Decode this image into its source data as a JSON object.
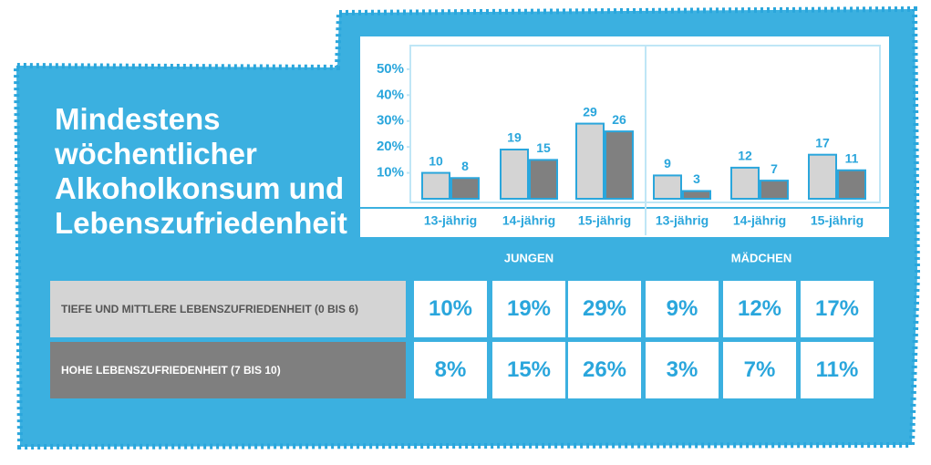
{
  "chart_data": {
    "type": "bar",
    "title": "Mindestens wöchentlicher Alkoholkonsum und Lebenszufriedenheit",
    "categories": [
      "13-jährig",
      "14-jährig",
      "15-jährig",
      "13-jährig",
      "14-jährig",
      "15-jährig"
    ],
    "group_labels": [
      "JUNGEN",
      "MÄDCHEN"
    ],
    "series": [
      {
        "name": "TIEFE UND MITTLERE LEBENSZUFRIEDENHEIT (0 BIS 6)",
        "color": "#d4d4d4",
        "values": [
          10,
          19,
          29,
          9,
          12,
          17
        ],
        "value_labels": [
          "10%",
          "19%",
          "29%",
          "9%",
          "12%",
          "17%"
        ]
      },
      {
        "name": "HOHE LEBENSZUFRIEDENHEIT (7 BIS 10)",
        "color": "#808080",
        "values": [
          8,
          15,
          26,
          3,
          7,
          11
        ],
        "value_labels": [
          "8%",
          "15%",
          "26%",
          "3%",
          "7%",
          "11%"
        ]
      }
    ],
    "ylim": [
      0,
      57
    ],
    "yticks": [
      {
        "value": 10,
        "label": "10%"
      },
      {
        "value": 20,
        "label": "20%"
      },
      {
        "value": 30,
        "label": "30%"
      },
      {
        "value": 40,
        "label": "40%"
      },
      {
        "value": 50,
        "label": "50%"
      }
    ]
  }
}
